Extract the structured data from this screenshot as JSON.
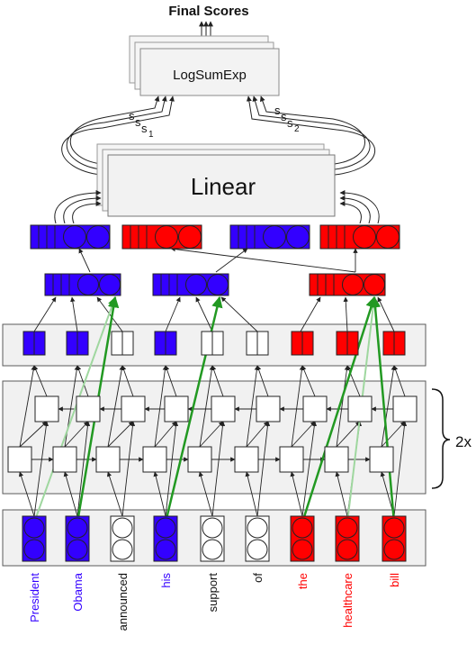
{
  "labels": {
    "final_scores": "Final Scores",
    "logsumexp": "LogSumExp",
    "linear": "Linear",
    "s1": "s",
    "s1_sub": "1",
    "s2": "s",
    "s2_sub": "2",
    "layers": "2x"
  },
  "colors": {
    "blue": "#3300ff",
    "red": "#ff0000",
    "green": "#229922",
    "light_green": "#9fd79f",
    "panel": "#f1f1f1",
    "panel_border": "#5a5a5a",
    "line": "#222222"
  },
  "words": [
    {
      "text": "President",
      "color": "blue"
    },
    {
      "text": "Obama",
      "color": "blue"
    },
    {
      "text": "announced",
      "color": "black"
    },
    {
      "text": "his",
      "color": "blue"
    },
    {
      "text": "support",
      "color": "black"
    },
    {
      "text": "of",
      "color": "black"
    },
    {
      "text": "the",
      "color": "red"
    },
    {
      "text": "healthcare",
      "color": "red"
    },
    {
      "text": "bill",
      "color": "red"
    }
  ]
}
